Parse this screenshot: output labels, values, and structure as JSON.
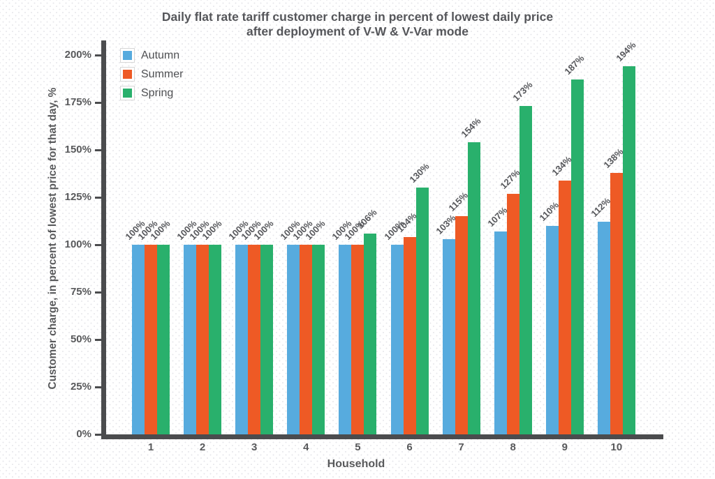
{
  "chart_data": {
    "type": "bar",
    "title_line1": "Daily flat rate tariff customer charge in percent of lowest daily price",
    "title_line2": "after deployment of V-W & V-Var mode",
    "xlabel": "Household",
    "ylabel": "Customer charge, in percent of lowest price for that day, %",
    "categories": [
      "1",
      "2",
      "3",
      "4",
      "5",
      "6",
      "7",
      "8",
      "9",
      "10"
    ],
    "series": [
      {
        "name": "Autumn",
        "color": "#57abde",
        "values": [
          100,
          100,
          100,
          100,
          100,
          100,
          103,
          107,
          110,
          112
        ]
      },
      {
        "name": "Summer",
        "color": "#ee5a25",
        "values": [
          100,
          100,
          100,
          100,
          100,
          104,
          115,
          127,
          134,
          138
        ]
      },
      {
        "name": "Spring",
        "color": "#29b06c",
        "values": [
          100,
          100,
          100,
          100,
          106,
          130,
          154,
          173,
          187,
          194
        ]
      }
    ],
    "value_label_suffix": "%",
    "yticks": [
      0,
      25,
      50,
      75,
      100,
      125,
      150,
      175,
      200
    ],
    "ytick_suffix": "%",
    "ylim": [
      0,
      200
    ],
    "grid": false,
    "legend_position": "upper left",
    "colors": {
      "text": "#58595b",
      "axis": "#4b4c4e"
    }
  }
}
